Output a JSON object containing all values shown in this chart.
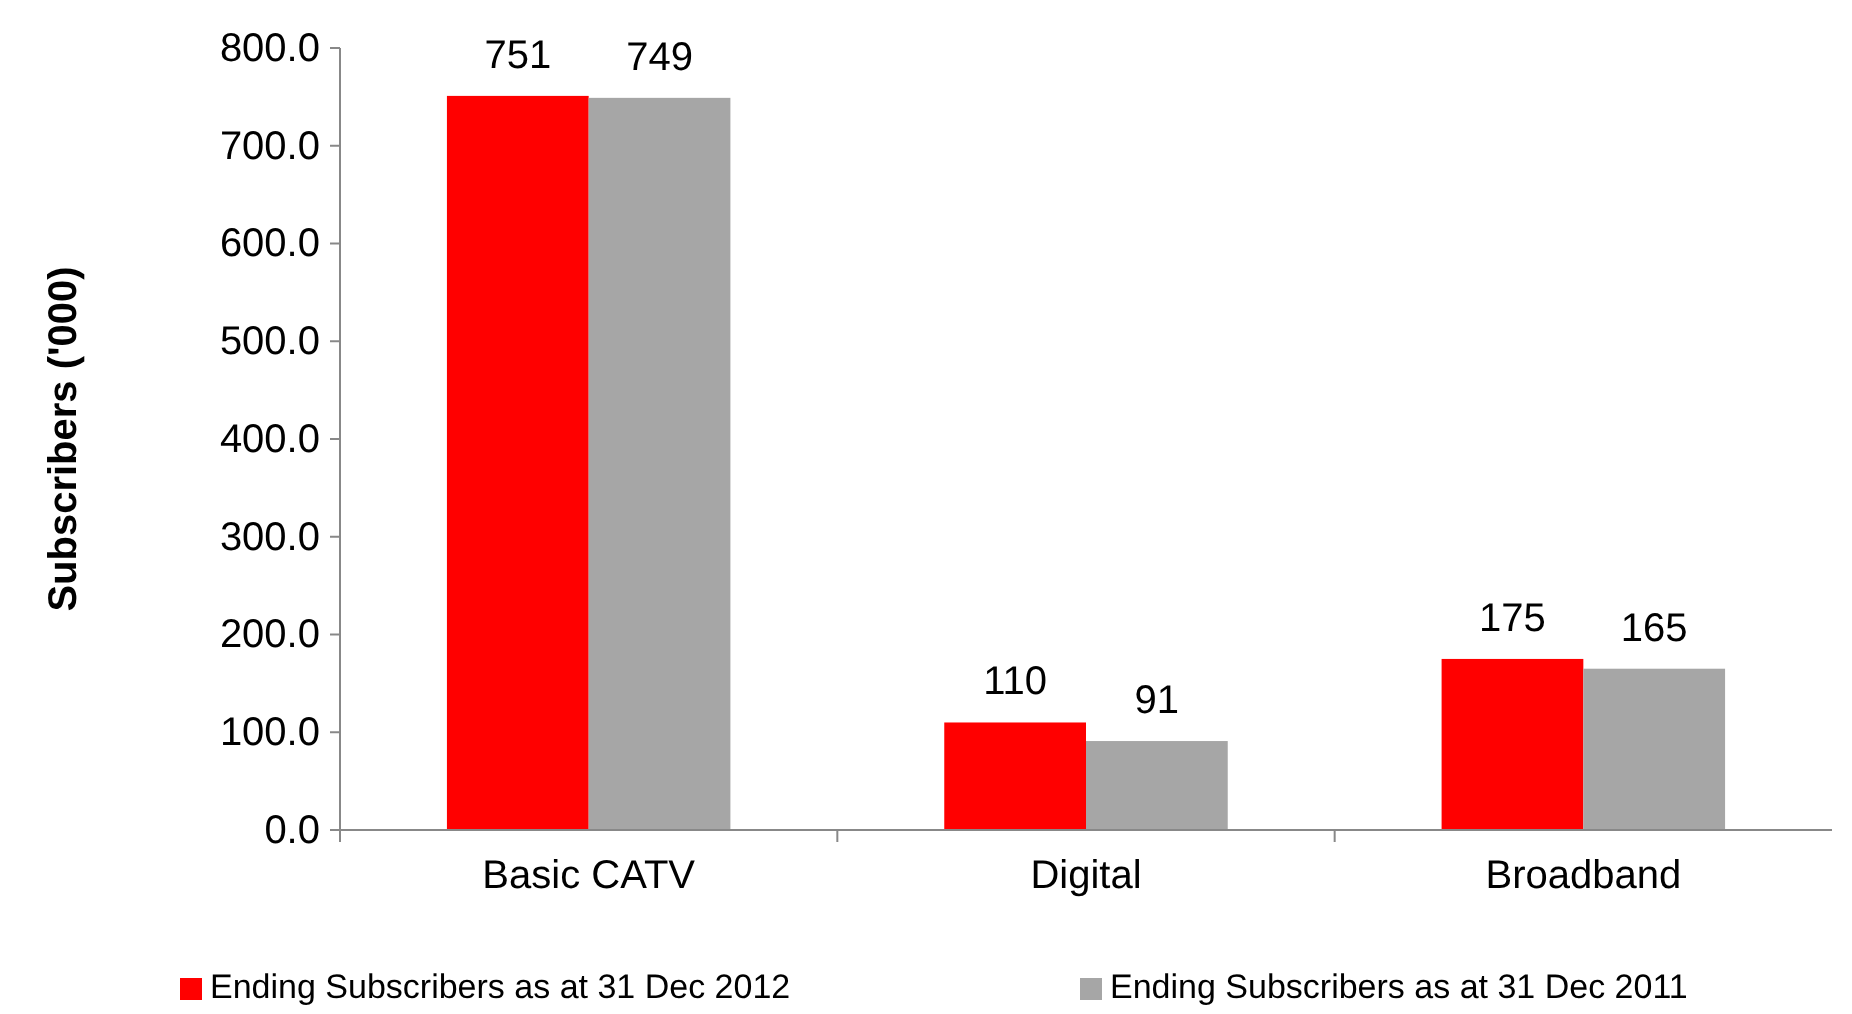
{
  "chart_data": {
    "type": "bar",
    "ylabel": "Subscribers ('000)",
    "categories": [
      "Basic CATV",
      "Digital",
      "Broadband"
    ],
    "series": [
      {
        "name": "Ending Subscribers as at 31 Dec 2012",
        "color": "#ff0000",
        "values": [
          751,
          110,
          175
        ]
      },
      {
        "name": "Ending Subscribers as at 31 Dec 2011",
        "color": "#a6a6a6",
        "values": [
          749,
          91,
          165
        ]
      }
    ],
    "ylim": [
      0,
      800
    ],
    "yticks": [
      {
        "value": 0,
        "label": "0.0"
      },
      {
        "value": 100,
        "label": "100.0"
      },
      {
        "value": 200,
        "label": "200.0"
      },
      {
        "value": 300,
        "label": "300.0"
      },
      {
        "value": 400,
        "label": "400.0"
      },
      {
        "value": 500,
        "label": "500.0"
      },
      {
        "value": 600,
        "label": "600.0"
      },
      {
        "value": 700,
        "label": "700.0"
      },
      {
        "value": 800,
        "label": "800.0"
      }
    ],
    "data_labels": true,
    "grid": false,
    "legend": "bottom"
  }
}
